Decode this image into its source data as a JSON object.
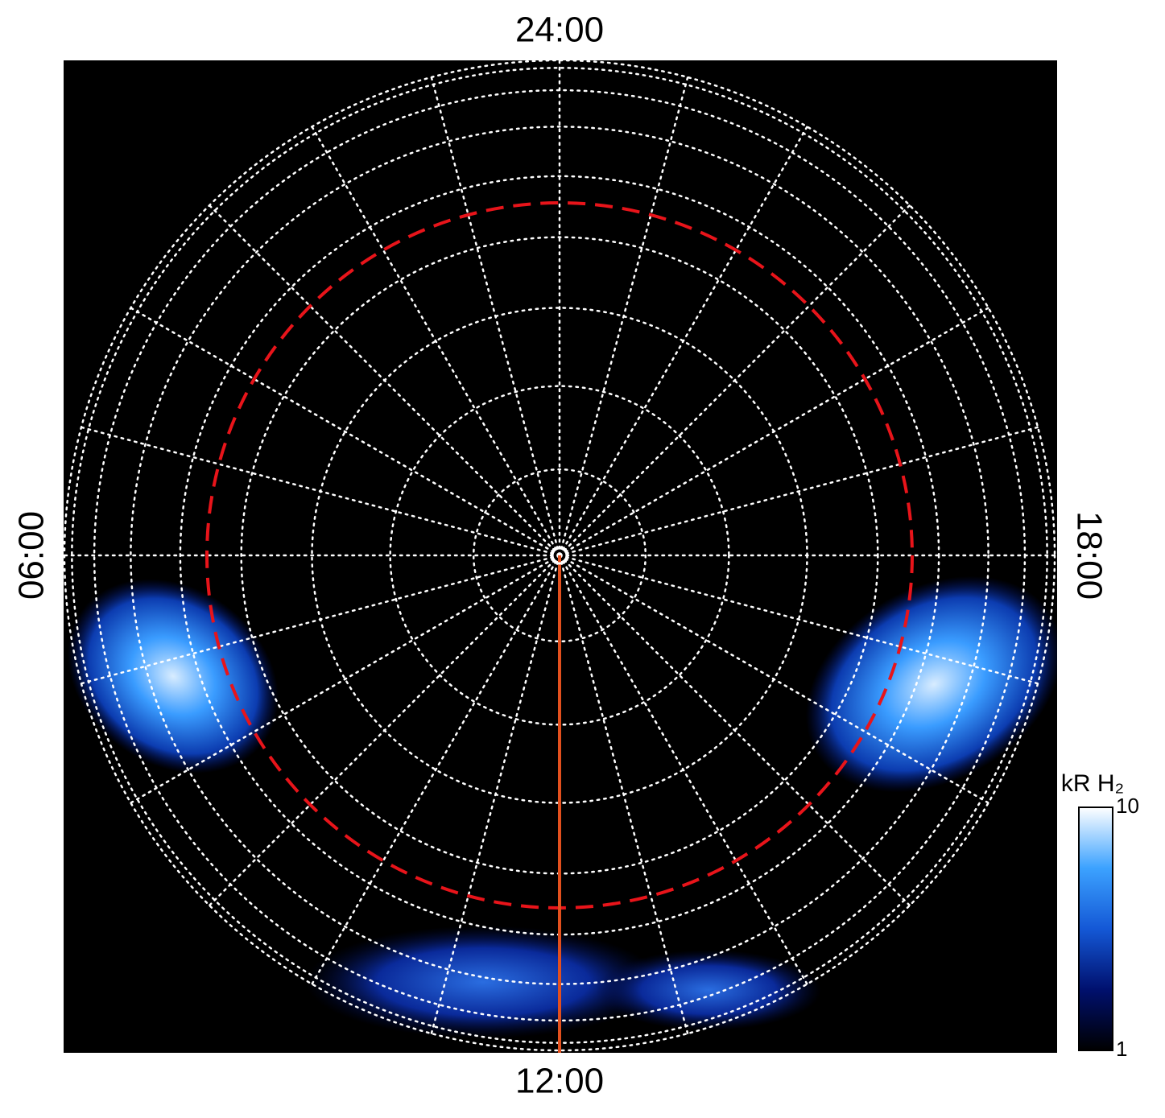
{
  "chart_data": {
    "type": "polar",
    "local_time_labels": {
      "top": "24:00",
      "left": "06:00",
      "bottom": "12:00",
      "right": "18:00"
    },
    "colorbar": {
      "label": "kR H₂",
      "clim": [
        1,
        10
      ],
      "ticks": [
        1,
        10
      ],
      "log": true,
      "colors": [
        "#000000",
        "#00106e",
        "#1458d6",
        "#3ca2ff",
        "#ffffff"
      ]
    }
  }
}
